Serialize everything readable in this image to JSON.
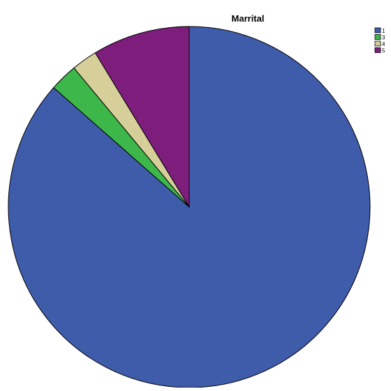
{
  "chart_data": {
    "type": "pie",
    "title": "Marrital",
    "categories": [
      "1",
      "3",
      "4",
      "5"
    ],
    "values": [
      86.5,
      2.5,
      2.3,
      8.7
    ],
    "colors": [
      "#3f5cab",
      "#3db64a",
      "#d6cf9a",
      "#7d1e7d"
    ],
    "start_angle": "12 o'clock",
    "direction": "clockwise",
    "legend_placement": "top-right"
  }
}
